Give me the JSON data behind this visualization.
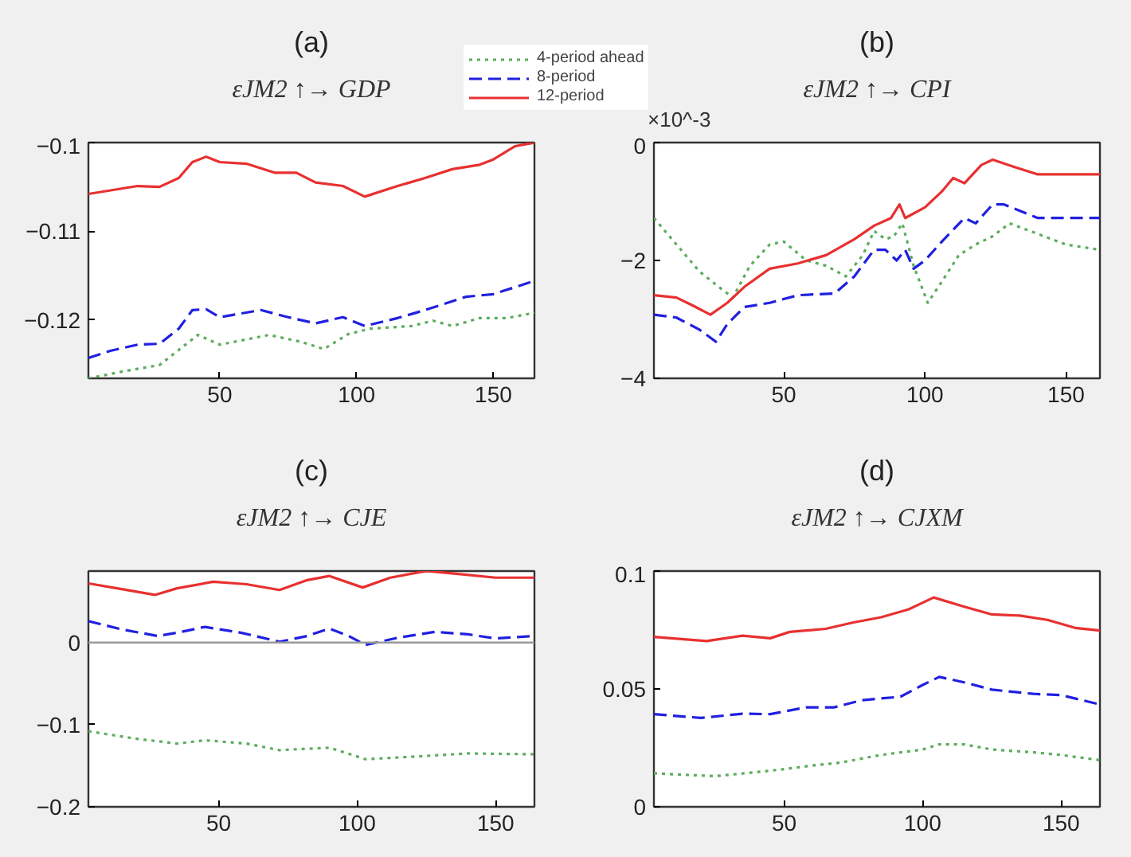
{
  "chart_data": [
    {
      "type": "line",
      "title": "(a)",
      "subtitle": "εJM2 ↑→ GDP",
      "legend": "top",
      "grid": false,
      "xlim": [
        2,
        165
      ],
      "xticks": [
        50,
        100,
        150
      ],
      "ylim": [
        -0.1266,
        -0.1
      ],
      "yticks": [
        -0.12,
        -0.11,
        -0.1
      ],
      "series": [
        {
          "name": "4-period ahead",
          "color": "#5cad5c",
          "line_style": "dotted",
          "x": [
            2,
            15,
            28,
            35,
            42,
            50,
            60,
            68,
            80,
            88,
            97,
            105,
            120,
            128,
            135,
            145,
            155,
            165
          ],
          "values": [
            -0.1266,
            -0.1258,
            -0.1251,
            -0.1234,
            -0.1217,
            -0.1228,
            -0.1222,
            -0.1217,
            -0.1225,
            -0.1233,
            -0.1216,
            -0.121,
            -0.1207,
            -0.1201,
            -0.1207,
            -0.1198,
            -0.1198,
            -0.1192
          ]
        },
        {
          "name": "8-period",
          "color": "#2020e0",
          "line_style": "dashed",
          "x": [
            2,
            10,
            20,
            28,
            35,
            40,
            45,
            50,
            65,
            75,
            85,
            95,
            103,
            115,
            125,
            140,
            150,
            165
          ],
          "values": [
            -0.1243,
            -0.1235,
            -0.1228,
            -0.1227,
            -0.121,
            -0.1189,
            -0.1188,
            -0.1197,
            -0.1189,
            -0.1197,
            -0.1204,
            -0.1197,
            -0.1207,
            -0.1198,
            -0.1189,
            -0.1174,
            -0.1171,
            -0.1156
          ]
        },
        {
          "name": "12-period",
          "color": "#e83030",
          "line_style": "solid",
          "x": [
            2,
            20,
            28,
            35,
            40,
            45,
            50,
            60,
            70,
            78,
            85,
            95,
            103,
            115,
            125,
            135,
            145,
            150,
            158,
            165
          ],
          "values": [
            -0.1058,
            -0.1049,
            -0.105,
            -0.104,
            -0.1022,
            -0.1016,
            -0.1022,
            -0.1024,
            -0.1034,
            -0.1034,
            -0.1045,
            -0.1049,
            -0.1061,
            -0.1049,
            -0.104,
            -0.103,
            -0.1025,
            -0.1019,
            -0.1004,
            -0.1
          ]
        }
      ]
    },
    {
      "type": "line",
      "title": "(b)",
      "subtitle": "εJM2 ↑→ CPI",
      "annotations": [
        "×10^-3"
      ],
      "grid": false,
      "xlim": [
        4,
        162
      ],
      "xticks": [
        50,
        100,
        150
      ],
      "ylim": [
        -4,
        0
      ],
      "yticks": [
        -4,
        -2,
        0
      ],
      "series": [
        {
          "color": "#5cad5c",
          "line_style": "dotted",
          "x": [
            4,
            12,
            20,
            27,
            32,
            38,
            45,
            50,
            58,
            65,
            72,
            78,
            82,
            86,
            89,
            92,
            96,
            101,
            106,
            112,
            118,
            124,
            130,
            140,
            150,
            162
          ],
          "values": [
            -1.28,
            -1.73,
            -2.18,
            -2.45,
            -2.63,
            -2.09,
            -1.73,
            -1.68,
            -2.0,
            -2.09,
            -2.27,
            -1.91,
            -1.5,
            -1.64,
            -1.59,
            -1.37,
            -2.09,
            -2.72,
            -2.36,
            -1.91,
            -1.73,
            -1.59,
            -1.37,
            -1.55,
            -1.73,
            -1.82
          ]
        },
        {
          "color": "#2020e0",
          "line_style": "dashed",
          "x": [
            4,
            12,
            20,
            26,
            30,
            36,
            45,
            55,
            68,
            75,
            82,
            86,
            90,
            93,
            96,
            100,
            106,
            114,
            118,
            124,
            128,
            140,
            150,
            162
          ],
          "values": [
            -2.92,
            -2.97,
            -3.17,
            -3.38,
            -3.08,
            -2.79,
            -2.72,
            -2.59,
            -2.56,
            -2.27,
            -1.82,
            -1.82,
            -2.0,
            -1.82,
            -2.14,
            -2.0,
            -1.68,
            -1.28,
            -1.37,
            -1.05,
            -1.05,
            -1.28,
            -1.28,
            -1.28
          ]
        },
        {
          "color": "#e83030",
          "line_style": "solid",
          "x": [
            4,
            12,
            18,
            24,
            30,
            36,
            45,
            55,
            65,
            75,
            82,
            88,
            91,
            93,
            100,
            106,
            110,
            114,
            120,
            124,
            132,
            140,
            150,
            162
          ],
          "values": [
            -2.59,
            -2.63,
            -2.77,
            -2.92,
            -2.72,
            -2.45,
            -2.14,
            -2.05,
            -1.91,
            -1.64,
            -1.41,
            -1.28,
            -1.05,
            -1.28,
            -1.1,
            -0.83,
            -0.6,
            -0.69,
            -0.38,
            -0.29,
            -0.42,
            -0.54,
            -0.54,
            -0.54
          ]
        }
      ]
    },
    {
      "type": "line",
      "title": "(c)",
      "subtitle": "εJM2 ↑→ CJE",
      "grid": false,
      "xlim": [
        3,
        164
      ],
      "xticks": [
        50,
        100,
        150
      ],
      "ylim": [
        -0.2,
        0.087
      ],
      "yticks": [
        -0.2,
        -0.1,
        0
      ],
      "ref_lines": [
        {
          "axis": "y",
          "value": 0,
          "color": "#9a9a9a"
        }
      ],
      "series": [
        {
          "color": "#5cad5c",
          "line_style": "dotted",
          "x": [
            3,
            20,
            35,
            45,
            60,
            72,
            90,
            103,
            120,
            140,
            164
          ],
          "values": [
            -0.108,
            -0.117,
            -0.123,
            -0.119,
            -0.123,
            -0.131,
            -0.128,
            -0.142,
            -0.139,
            -0.135,
            -0.136
          ]
        },
        {
          "color": "#2020e0",
          "line_style": "dashed",
          "x": [
            3,
            15,
            28,
            35,
            45,
            58,
            72,
            82,
            90,
            97,
            103,
            115,
            128,
            140,
            150,
            164
          ],
          "values": [
            0.026,
            0.016,
            0.008,
            0.012,
            0.019,
            0.012,
            0.001,
            0.008,
            0.017,
            0.008,
            -0.003,
            0.006,
            0.013,
            0.01,
            0.005,
            0.008
          ]
        },
        {
          "color": "#e83030",
          "line_style": "solid",
          "x": [
            3,
            15,
            27,
            35,
            48,
            60,
            72,
            82,
            90,
            102,
            112,
            125,
            135,
            150,
            164
          ],
          "values": [
            0.072,
            0.065,
            0.058,
            0.066,
            0.074,
            0.071,
            0.064,
            0.076,
            0.081,
            0.067,
            0.079,
            0.087,
            0.084,
            0.079,
            0.079
          ]
        }
      ]
    },
    {
      "type": "line",
      "title": "(d)",
      "subtitle": "εJM2 ↑→ CJXM",
      "grid": false,
      "xlim": [
        3,
        164
      ],
      "xticks": [
        50,
        100,
        150
      ],
      "ylim": [
        0,
        0.1
      ],
      "yticks": [
        0,
        0.05,
        0.1
      ],
      "series": [
        {
          "color": "#5cad5c",
          "line_style": "dotted",
          "x": [
            3,
            25,
            45,
            60,
            70,
            85,
            100,
            106,
            115,
            125,
            140,
            150,
            164
          ],
          "values": [
            0.0142,
            0.013,
            0.0153,
            0.0175,
            0.0187,
            0.022,
            0.0243,
            0.0265,
            0.0265,
            0.0243,
            0.0231,
            0.022,
            0.0198
          ]
        },
        {
          "color": "#2020e0",
          "line_style": "dashed",
          "x": [
            3,
            20,
            35,
            45,
            58,
            68,
            78,
            92,
            100,
            106,
            115,
            125,
            140,
            150,
            164
          ],
          "values": [
            0.0393,
            0.0377,
            0.0395,
            0.0393,
            0.0422,
            0.0422,
            0.0452,
            0.0467,
            0.0517,
            0.0551,
            0.0528,
            0.0497,
            0.0479,
            0.0474,
            0.0434
          ]
        },
        {
          "color": "#e83030",
          "line_style": "solid",
          "x": [
            3,
            22,
            35,
            45,
            52,
            65,
            75,
            85,
            95,
            104,
            115,
            125,
            135,
            145,
            155,
            164
          ],
          "values": [
            0.0721,
            0.0703,
            0.0726,
            0.0715,
            0.0742,
            0.0755,
            0.0782,
            0.0804,
            0.0838,
            0.0888,
            0.0849,
            0.0816,
            0.0811,
            0.0793,
            0.0759,
            0.0748
          ]
        }
      ]
    }
  ]
}
